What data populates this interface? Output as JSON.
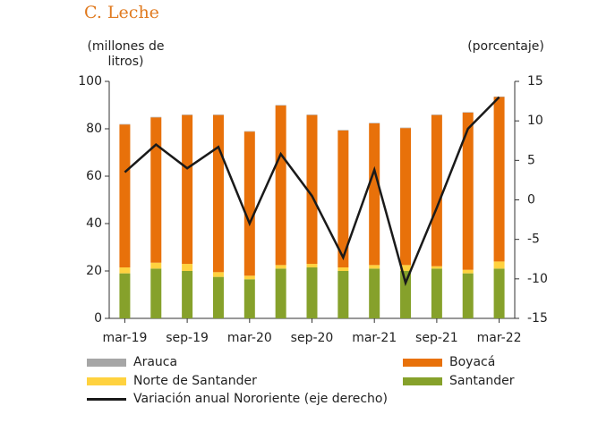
{
  "chart_data": {
    "type": "bar-line",
    "title": "C. Leche",
    "y_label": "(millones de litros)",
    "y2_label": "(porcentaje)",
    "categories": [
      "mar-19",
      null,
      "sep-19",
      null,
      "mar-20",
      null,
      "sep-20",
      null,
      "mar-21",
      null,
      "sep-21",
      null,
      "mar-22"
    ],
    "series": [
      {
        "name": "Arauca",
        "color": "#a6a6a6",
        "values": [
          0.2,
          0.2,
          0.2,
          0.2,
          0.2,
          0.2,
          0.2,
          0.2,
          0.2,
          0.2,
          0.2,
          0.2,
          0.2
        ]
      },
      {
        "name": "Boyacá",
        "color": "#e8710a",
        "values": [
          60.3,
          61.3,
          62.8,
          66.3,
          60.8,
          67.3,
          62.8,
          57.8,
          59.8,
          57.8,
          63.8,
          66.3,
          69.4
        ]
      },
      {
        "name": "Norte de Santander",
        "color": "#ffd23f",
        "values": [
          2.5,
          2.5,
          3,
          2,
          1.5,
          1.5,
          1.5,
          1.5,
          1.5,
          2.5,
          1,
          1.5,
          3
        ]
      },
      {
        "name": "Santander",
        "color": "#86a12b",
        "values": [
          19,
          21,
          20,
          17.5,
          16.5,
          21,
          21.5,
          20,
          21,
          20,
          21,
          19,
          21
        ]
      },
      {
        "name": "Variación anual Nororiente (eje derecho)",
        "color": "#1a1a1a",
        "axis": "y2",
        "values": [
          3.5,
          7,
          4,
          6.7,
          -3,
          5.8,
          0.5,
          -7.3,
          3.8,
          -10.5,
          -1,
          9,
          13
        ]
      }
    ],
    "ylim": [
      0,
      100
    ],
    "yticks": [
      0,
      20,
      40,
      60,
      80,
      100
    ],
    "y2lim": [
      -15,
      15
    ],
    "y2ticks": [
      -15,
      -10,
      -5,
      0,
      5,
      10,
      15
    ]
  }
}
